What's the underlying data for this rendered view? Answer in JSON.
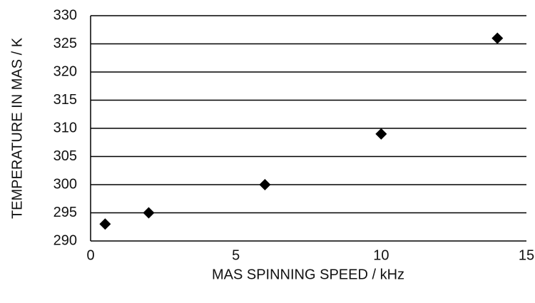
{
  "chart_data": {
    "type": "scatter",
    "x_label": "MAS SPINNING SPEED / kHz",
    "y_label": "TEMPERATURE IN MAS / K",
    "x": [
      0.5,
      2,
      6,
      10,
      14
    ],
    "values": [
      293,
      295,
      300,
      309,
      326
    ],
    "color": "#000000",
    "xlim": [
      0,
      15
    ],
    "xticks": [
      0,
      5,
      10,
      15
    ],
    "ylim": [
      290,
      330
    ],
    "yticks": [
      290,
      295,
      300,
      305,
      310,
      315,
      320,
      325,
      330
    ],
    "grid": true
  }
}
